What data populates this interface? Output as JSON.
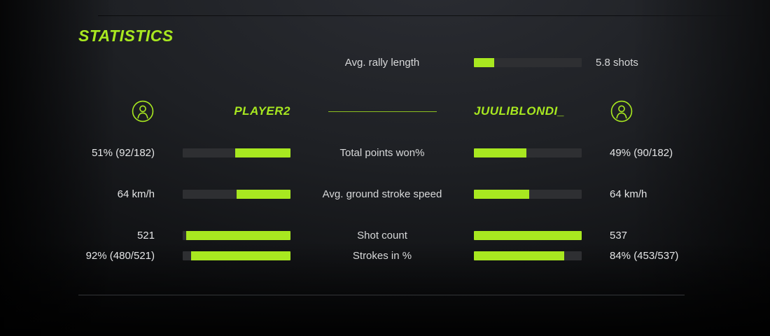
{
  "colors": {
    "accent": "#a8e820",
    "bar_track": "#2e2f32",
    "center_divider": "#8cbf1f"
  },
  "header": {
    "title": "STATISTICS"
  },
  "rally": {
    "label": "Avg. rally length",
    "value": "5.8 shots",
    "percent": 19
  },
  "players": {
    "left": {
      "name": "PLAYER2",
      "icon": "user-icon"
    },
    "right": {
      "name": "JUULIBLONDI_",
      "icon": "user-icon"
    }
  },
  "stats": [
    {
      "label": "Total points won%",
      "left": {
        "value": "51% (92/182)",
        "percent": 51
      },
      "right": {
        "value": "49% (90/182)",
        "percent": 49
      }
    },
    {
      "label": "Avg. ground stroke speed",
      "left": {
        "value": "64 km/h",
        "percent": 50
      },
      "right": {
        "value": "64 km/h",
        "percent": 51
      }
    },
    {
      "label": "Shot count",
      "left": {
        "value": "521",
        "percent": 97
      },
      "right": {
        "value": "537",
        "percent": 100
      }
    },
    {
      "label": "Strokes in %",
      "left": {
        "value": "92% (480/521)",
        "percent": 92
      },
      "right": {
        "value": "84% (453/537)",
        "percent": 84
      }
    }
  ]
}
